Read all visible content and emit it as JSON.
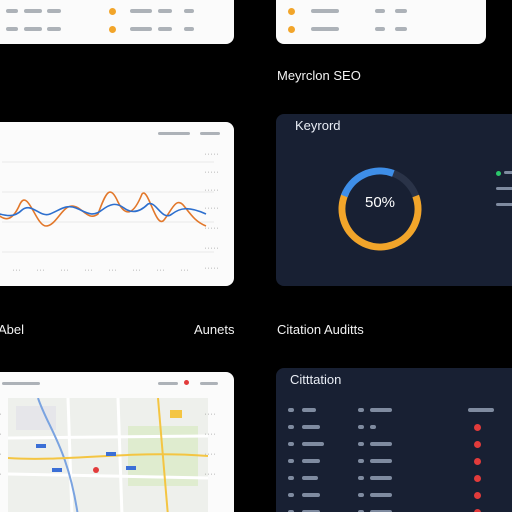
{
  "captions": {
    "keyword_seo": "Meyrclon SEO",
    "abel": "Abel",
    "aunets": "Aunets",
    "citation_audits": "Citation Auditts"
  },
  "keyword_card": {
    "title": "Keyrord",
    "percent": "50%",
    "donut_fraction": 0.5
  },
  "citation_card": {
    "title": "Citttation"
  },
  "colors": {
    "accent_orange": "#f2a52a",
    "accent_blue": "#3e8ee8",
    "alert_red": "#e23b3b",
    "ok_green": "#2bc76b"
  }
}
